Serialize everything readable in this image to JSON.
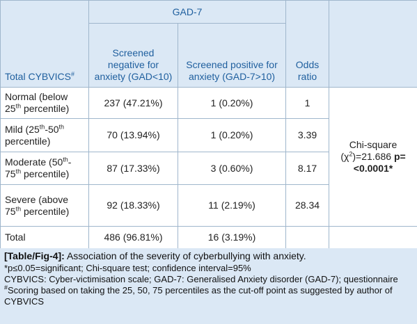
{
  "table": {
    "header": {
      "total": [
        {
          "text": "Total CYBVICS"
        },
        {
          "text": "#",
          "sup": true
        }
      ],
      "group": "GAD-7",
      "negative": "Screened negative for anxiety (GAD<10)",
      "positive": "Screened positive for anxiety (GAD-7>10)",
      "odds": "Odds ratio"
    },
    "rows": [
      {
        "label": [
          {
            "text": "Normal (below 25"
          },
          {
            "text": "th",
            "sup": true
          },
          {
            "text": " percentile)"
          }
        ],
        "negative": "237 (47.21%)",
        "positive": "1 (0.20%)",
        "odds": "1"
      },
      {
        "label": [
          {
            "text": "Mild (25"
          },
          {
            "text": "th",
            "sup": true
          },
          {
            "text": "-50"
          },
          {
            "text": "th",
            "sup": true
          },
          {
            "text": " percentile)"
          }
        ],
        "negative": "70 (13.94%)",
        "positive": "1 (0.20%)",
        "odds": "3.39"
      },
      {
        "label": [
          {
            "text": "Moderate (50"
          },
          {
            "text": "th",
            "sup": true
          },
          {
            "text": "-75"
          },
          {
            "text": "th",
            "sup": true
          },
          {
            "text": " percentile)"
          }
        ],
        "negative": "87 (17.33%)",
        "positive": "3 (0.60%)",
        "odds": "8.17"
      },
      {
        "label": [
          {
            "text": "Severe (above 75"
          },
          {
            "text": "th",
            "sup": true
          },
          {
            "text": " percentile)"
          }
        ],
        "negative": "92 (18.33%)",
        "positive": "11 (2.19%)",
        "odds": "28.34"
      },
      {
        "label": [
          {
            "text": "Total"
          }
        ],
        "negative": "486 (96.81%)",
        "positive": "16 (3.19%)",
        "odds": null
      }
    ],
    "statistic": [
      {
        "text": "Chi-square (χ"
      },
      {
        "text": "2",
        "sup": true
      },
      {
        "text": ")=21.686 "
      },
      {
        "text": "p=<0.0001*",
        "bold": true
      }
    ]
  },
  "caption": [
    [
      {
        "text": "[Table/Fig-4]:",
        "bold": true
      },
      {
        "text": " Association of the severity of cyberbullying with anxiety."
      }
    ],
    [
      {
        "text": "*p≤0.05=significant; Chi-square test; confidence interval=95%"
      }
    ],
    [
      {
        "text": "CYBVICS: Cyber-victimisation scale; GAD-7: Generalised Anxiety disorder (GAD-7); questionnaire"
      }
    ],
    [
      {
        "text": "#",
        "sup": true
      },
      {
        "text": "Scoring based on taking the 25, 50, 75 percentiles as the cut-off point as suggested by author of CYBVICS"
      }
    ]
  ]
}
